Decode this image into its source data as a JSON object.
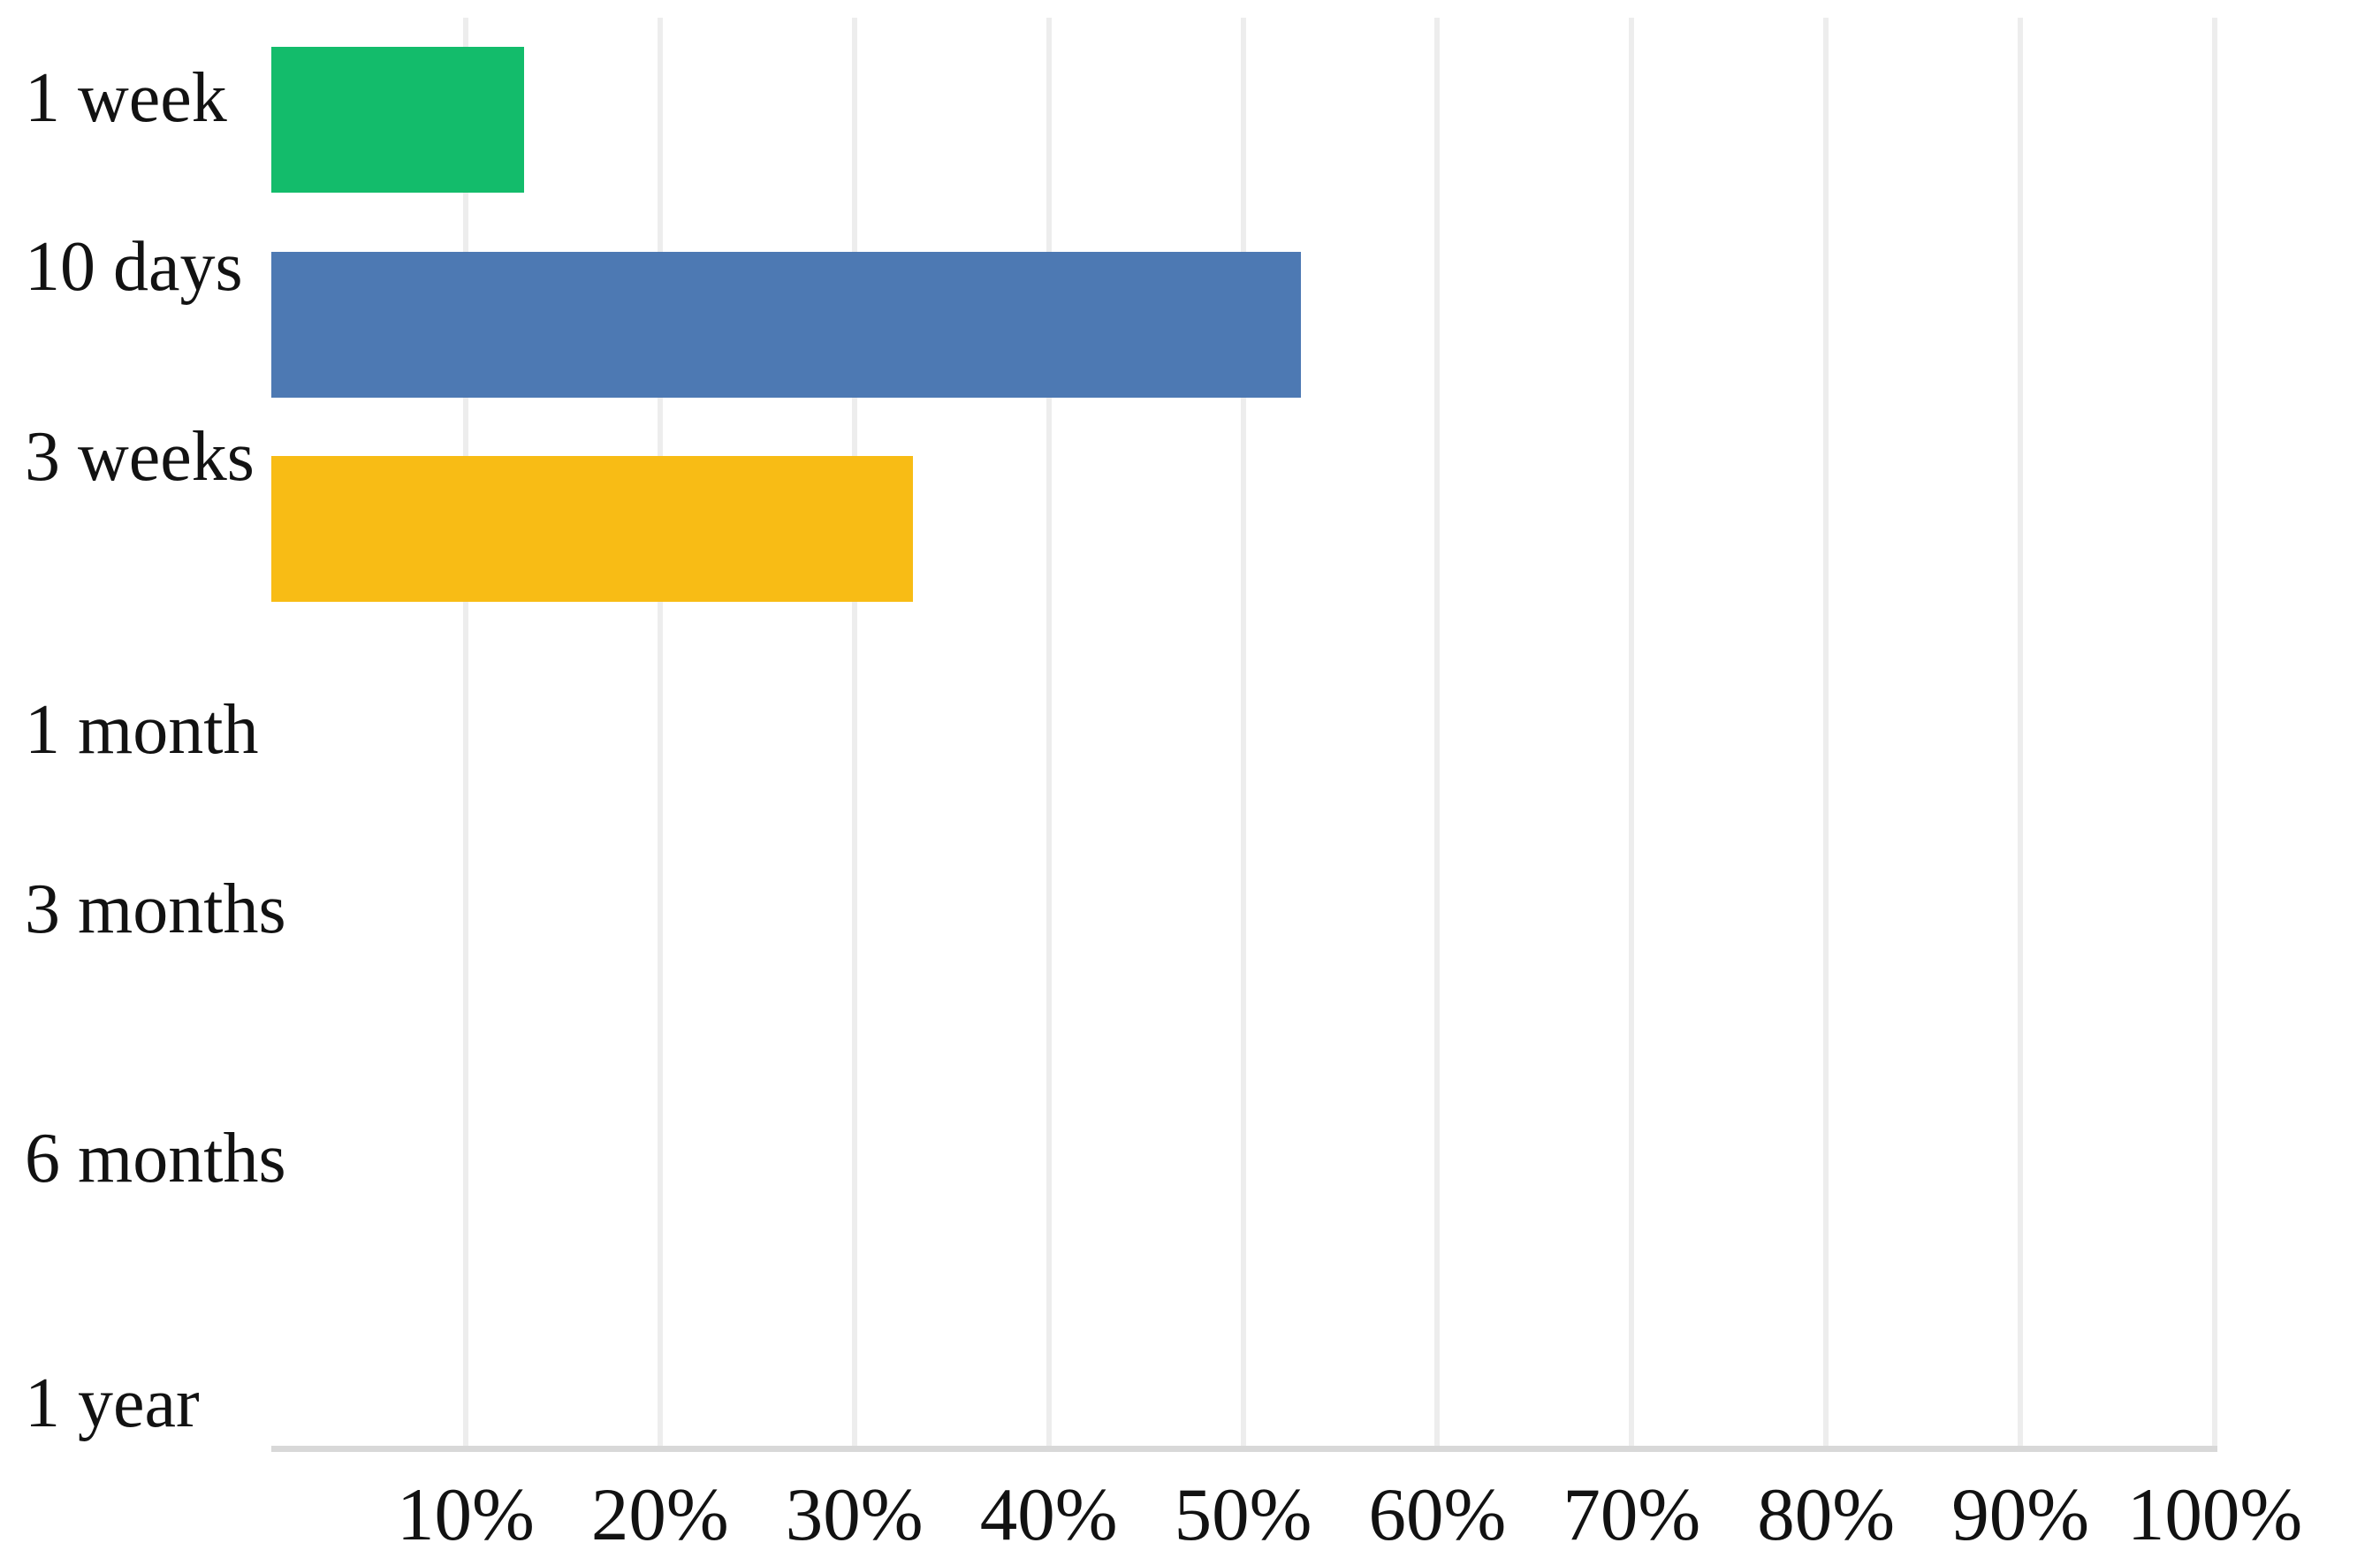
{
  "chart_data": {
    "type": "bar",
    "orientation": "horizontal",
    "title": "",
    "xlabel": "",
    "ylabel": "",
    "categories": [
      "1 week",
      "10 days",
      "3 weeks",
      "1 month",
      "3 months",
      "6 months",
      "1 year"
    ],
    "values": [
      13,
      53,
      33,
      0,
      0,
      0,
      0
    ],
    "unit": "%",
    "bar_colors": [
      "#13bc6b",
      "#4d79b3",
      "#f8bc15",
      "",
      "",
      "",
      ""
    ],
    "x_ticks": [
      "10%",
      "20%",
      "30%",
      "40%",
      "50%",
      "60%",
      "70%",
      "80%",
      "90%",
      "100%"
    ],
    "xlim": [
      0,
      100
    ],
    "grid": "vertical",
    "legend": "none",
    "colors": {
      "gridline": "#ededed",
      "axis_line": "#d8d8d8",
      "text": "#121212",
      "background": "#ffffff"
    }
  }
}
